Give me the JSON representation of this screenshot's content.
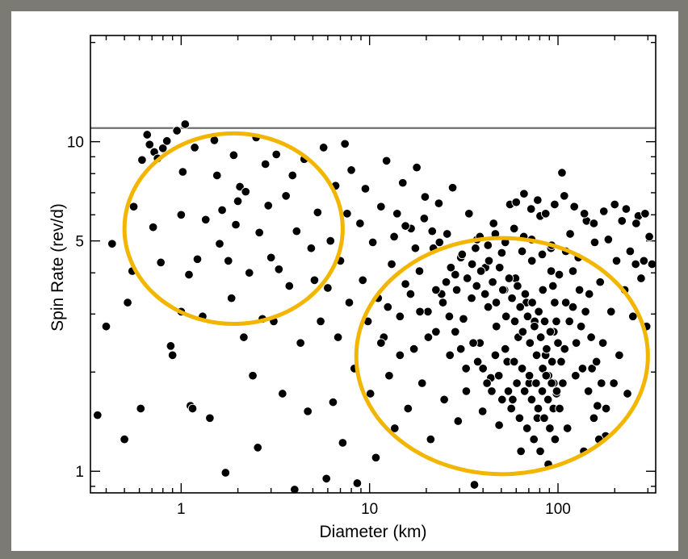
{
  "chart_data": {
    "type": "scatter",
    "title": "",
    "xlabel": "Diameter (km)",
    "ylabel": "Spin Rate (rev/d)",
    "xscale": "log",
    "yscale": "log",
    "xlim": [
      0.33,
      330
    ],
    "ylim": [
      0.86,
      21
    ],
    "grid": false,
    "x_ticks": [
      {
        "value": 1,
        "label": "1"
      },
      {
        "value": 10,
        "label": "10"
      },
      {
        "value": 100,
        "label": "100"
      }
    ],
    "y_ticks": [
      {
        "value": 1,
        "label": "1"
      },
      {
        "value": 5,
        "label": "5"
      },
      {
        "value": 10,
        "label": "10"
      }
    ],
    "spin_barrier": 11,
    "marker_color": "#000000",
    "highlight_color": "#f2b600",
    "highlight_regions": [
      {
        "x_range": [
          0.5,
          7.2
        ],
        "y_range": [
          2.8,
          10.6
        ]
      },
      {
        "x_range": [
          8.5,
          300
        ],
        "y_range": [
          0.98,
          5.1
        ]
      }
    ],
    "points": [
      [
        0.36,
        1.48
      ],
      [
        0.43,
        4.9
      ],
      [
        0.4,
        2.75
      ],
      [
        0.5,
        1.25
      ],
      [
        0.52,
        3.25
      ],
      [
        0.55,
        4.05
      ],
      [
        0.56,
        6.35
      ],
      [
        0.61,
        1.55
      ],
      [
        0.62,
        8.8
      ],
      [
        0.66,
        10.5
      ],
      [
        0.68,
        9.8
      ],
      [
        0.71,
        5.5
      ],
      [
        0.72,
        9.3
      ],
      [
        0.75,
        8.9
      ],
      [
        0.78,
        4.3
      ],
      [
        0.8,
        9.55
      ],
      [
        0.84,
        10.05
      ],
      [
        0.88,
        2.4
      ],
      [
        0.9,
        2.25
      ],
      [
        0.95,
        10.8
      ],
      [
        1.0,
        3.05
      ],
      [
        1.0,
        6.0
      ],
      [
        1.02,
        8.1
      ],
      [
        1.05,
        11.3
      ],
      [
        1.1,
        3.95
      ],
      [
        1.12,
        1.58
      ],
      [
        1.15,
        1.55
      ],
      [
        1.18,
        9.6
      ],
      [
        1.22,
        4.4
      ],
      [
        1.3,
        2.95
      ],
      [
        1.35,
        5.8
      ],
      [
        1.42,
        1.45
      ],
      [
        1.5,
        10.1
      ],
      [
        1.55,
        7.9
      ],
      [
        1.6,
        4.9
      ],
      [
        1.65,
        6.2
      ],
      [
        1.72,
        0.99
      ],
      [
        1.78,
        4.35
      ],
      [
        1.85,
        3.35
      ],
      [
        1.9,
        9.1
      ],
      [
        1.95,
        5.6
      ],
      [
        2.0,
        6.6
      ],
      [
        2.05,
        7.3
      ],
      [
        2.15,
        2.55
      ],
      [
        2.2,
        7.05
      ],
      [
        2.3,
        4.0
      ],
      [
        2.4,
        1.95
      ],
      [
        2.5,
        10.3
      ],
      [
        2.55,
        1.18
      ],
      [
        2.6,
        5.3
      ],
      [
        2.7,
        2.9
      ],
      [
        2.8,
        8.55
      ],
      [
        2.9,
        6.4
      ],
      [
        3.0,
        4.45
      ],
      [
        3.1,
        2.85
      ],
      [
        3.2,
        9.15
      ],
      [
        3.3,
        4.1
      ],
      [
        3.45,
        1.72
      ],
      [
        3.6,
        6.85
      ],
      [
        3.75,
        3.65
      ],
      [
        3.9,
        7.9
      ],
      [
        4.0,
        0.88
      ],
      [
        4.1,
        5.35
      ],
      [
        4.3,
        2.45
      ],
      [
        4.5,
        8.85
      ],
      [
        4.7,
        1.52
      ],
      [
        4.9,
        4.75
      ],
      [
        5.1,
        3.8
      ],
      [
        5.3,
        6.1
      ],
      [
        5.5,
        2.85
      ],
      [
        5.7,
        9.6
      ],
      [
        5.9,
        0.95
      ],
      [
        6.0,
        3.6
      ],
      [
        6.2,
        5.0
      ],
      [
        6.4,
        1.62
      ],
      [
        6.6,
        7.35
      ],
      [
        6.8,
        2.55
      ],
      [
        7.0,
        4.35
      ],
      [
        7.2,
        1.22
      ],
      [
        7.4,
        9.85
      ],
      [
        7.6,
        6.05
      ],
      [
        7.8,
        3.25
      ],
      [
        8.0,
        8.2
      ],
      [
        8.3,
        2.05
      ],
      [
        8.6,
        0.92
      ],
      [
        8.9,
        5.65
      ],
      [
        9.2,
        3.8
      ],
      [
        9.5,
        7.2
      ],
      [
        9.8,
        2.85
      ],
      [
        10.1,
        1.72
      ],
      [
        10.4,
        4.95
      ],
      [
        10.8,
        1.1
      ],
      [
        11.1,
        3.35
      ],
      [
        11.5,
        6.35
      ],
      [
        11.9,
        2.55
      ],
      [
        12.3,
        8.75
      ],
      [
        12.7,
        1.95
      ],
      [
        13.1,
        4.25
      ],
      [
        13.6,
        1.35
      ],
      [
        14.0,
        6.05
      ],
      [
        14.5,
        2.95
      ],
      [
        15.0,
        7.5
      ],
      [
        15.5,
        3.7
      ],
      [
        16.0,
        1.55
      ],
      [
        16.6,
        5.45
      ],
      [
        17.2,
        2.35
      ],
      [
        17.8,
        8.35
      ],
      [
        18.4,
        4.05
      ],
      [
        19.0,
        1.85
      ],
      [
        19.7,
        6.8
      ],
      [
        20.4,
        3.05
      ],
      [
        21.1,
        1.25
      ],
      [
        21.8,
        4.75
      ],
      [
        22.5,
        2.65
      ],
      [
        23.3,
        6.5
      ],
      [
        24.1,
        3.45
      ],
      [
        24.9,
        1.65
      ],
      [
        25.8,
        5.25
      ],
      [
        26.7,
        2.25
      ],
      [
        27.6,
        7.25
      ],
      [
        28.5,
        3.95
      ],
      [
        29.5,
        1.42
      ],
      [
        30.5,
        4.45
      ],
      [
        31.5,
        2.9
      ],
      [
        32.6,
        1.75
      ],
      [
        33.7,
        6.05
      ],
      [
        34.8,
        3.35
      ],
      [
        36.0,
        0.91
      ],
      [
        37.2,
        5.05
      ],
      [
        38.5,
        2.45
      ],
      [
        39.8,
        1.52
      ],
      [
        41.2,
        4.15
      ],
      [
        42.6,
        3.15
      ],
      [
        44.0,
        1.92
      ],
      [
        45.5,
        5.65
      ],
      [
        47.1,
        2.75
      ],
      [
        48.7,
        1.38
      ],
      [
        50.3,
        4.6
      ],
      [
        52.0,
        3.55
      ],
      [
        53.8,
        2.15
      ],
      [
        55.6,
        6.45
      ],
      [
        57.5,
        1.65
      ],
      [
        59.5,
        3.85
      ],
      [
        61.5,
        2.55
      ],
      [
        63.6,
        1.15
      ],
      [
        65.8,
        5.15
      ],
      [
        68.0,
        3.25
      ],
      [
        70.3,
        1.85
      ],
      [
        72.7,
        4.35
      ],
      [
        75.2,
        2.85
      ],
      [
        77.7,
        1.45
      ],
      [
        80.4,
        5.95
      ],
      [
        83.1,
        3.55
      ],
      [
        85.9,
        2.25
      ],
      [
        88.8,
        1.05
      ],
      [
        91.8,
        4.75
      ],
      [
        95.0,
        2.65
      ],
      [
        98.2,
        1.72
      ],
      [
        101.5,
        3.95
      ],
      [
        105.0,
        8.05
      ],
      [
        108.5,
        2.35
      ],
      [
        112.2,
        1.35
      ],
      [
        116.0,
        5.25
      ],
      [
        120.0,
        3.15
      ],
      [
        124.0,
        1.95
      ],
      [
        128.2,
        4.45
      ],
      [
        132.6,
        2.75
      ],
      [
        137.1,
        1.15
      ],
      [
        141.7,
        5.75
      ],
      [
        146.5,
        3.45
      ],
      [
        151.5,
        2.05
      ],
      [
        156.6,
        4.95
      ],
      [
        161.9,
        1.58
      ],
      [
        167.4,
        3.75
      ],
      [
        173.1,
        2.45
      ],
      [
        179.0,
        1.28
      ],
      [
        185.0,
        5.05
      ],
      [
        191.3,
        3.05
      ],
      [
        197.8,
        1.85
      ],
      [
        204.5,
        4.35
      ],
      [
        211.4,
        2.25
      ],
      [
        218.6,
        5.75
      ],
      [
        226.0,
        3.55
      ],
      [
        233.7,
        1.72
      ],
      [
        241.6,
        4.65
      ],
      [
        249.8,
        2.95
      ],
      [
        258.3,
        4.25
      ],
      [
        267.0,
        5.95
      ],
      [
        276.1,
        3.85
      ],
      [
        285.5,
        4.35
      ],
      [
        295.2,
        2.75
      ],
      [
        305.2,
        5.15
      ],
      [
        315.5,
        4.25
      ],
      [
        25.5,
        3.75
      ],
      [
        27.0,
        4.15
      ],
      [
        29.0,
        3.55
      ],
      [
        31.0,
        4.55
      ],
      [
        33.0,
        3.85
      ],
      [
        35.0,
        4.25
      ],
      [
        37.0,
        3.65
      ],
      [
        39.0,
        4.05
      ],
      [
        41.0,
        3.45
      ],
      [
        43.0,
        4.35
      ],
      [
        45.0,
        3.75
      ],
      [
        47.0,
        3.25
      ],
      [
        49.0,
        4.15
      ],
      [
        51.0,
        3.55
      ],
      [
        53.0,
        2.95
      ],
      [
        55.0,
        3.85
      ],
      [
        57.0,
        3.35
      ],
      [
        59.0,
        2.85
      ],
      [
        61.0,
        3.65
      ],
      [
        63.0,
        3.15
      ],
      [
        65.0,
        2.65
      ],
      [
        67.0,
        3.45
      ],
      [
        69.0,
        2.95
      ],
      [
        71.0,
        2.45
      ],
      [
        73.0,
        3.25
      ],
      [
        75.0,
        2.75
      ],
      [
        77.0,
        2.25
      ],
      [
        79.0,
        3.05
      ],
      [
        81.0,
        2.55
      ],
      [
        83.0,
        2.05
      ],
      [
        85.0,
        2.85
      ],
      [
        87.0,
        2.35
      ],
      [
        89.0,
        1.95
      ],
      [
        91.0,
        2.65
      ],
      [
        93.0,
        2.15
      ],
      [
        95.0,
        1.85
      ],
      [
        40.0,
        2.05
      ],
      [
        42.0,
        1.85
      ],
      [
        44.5,
        1.75
      ],
      [
        46.5,
        2.25
      ],
      [
        48.5,
        1.95
      ],
      [
        50.5,
        1.65
      ],
      [
        52.5,
        2.35
      ],
      [
        54.5,
        1.75
      ],
      [
        56.5,
        1.55
      ],
      [
        58.5,
        2.15
      ],
      [
        60.5,
        1.85
      ],
      [
        62.5,
        1.45
      ],
      [
        64.5,
        2.05
      ],
      [
        66.5,
        1.75
      ],
      [
        68.5,
        1.35
      ],
      [
        70.5,
        1.95
      ],
      [
        72.5,
        1.65
      ],
      [
        74.5,
        1.25
      ],
      [
        76.5,
        1.85
      ],
      [
        78.5,
        1.55
      ],
      [
        80.5,
        1.15
      ],
      [
        82.5,
        1.75
      ],
      [
        84.5,
        1.45
      ],
      [
        86.5,
        1.95
      ],
      [
        88.5,
        1.65
      ],
      [
        90.5,
        1.35
      ],
      [
        92.5,
        1.85
      ],
      [
        94.5,
        1.55
      ],
      [
        96.5,
        1.25
      ],
      [
        98.5,
        1.75
      ],
      [
        35.5,
        2.45
      ],
      [
        37.5,
        2.15
      ],
      [
        30.5,
        2.35
      ],
      [
        32.5,
        2.05
      ],
      [
        28.5,
        2.65
      ],
      [
        26.5,
        2.95
      ],
      [
        24.5,
        3.25
      ],
      [
        22.5,
        3.55
      ],
      [
        20.5,
        2.55
      ],
      [
        18.5,
        3.05
      ],
      [
        16.5,
        3.45
      ],
      [
        14.5,
        2.25
      ],
      [
        12.5,
        3.15
      ],
      [
        11.5,
        2.45
      ],
      [
        13.5,
        5.15
      ],
      [
        15.5,
        5.55
      ],
      [
        17.5,
        4.75
      ],
      [
        19.5,
        5.85
      ],
      [
        21.5,
        5.35
      ],
      [
        23.5,
        4.95
      ],
      [
        36.5,
        4.75
      ],
      [
        38.5,
        5.15
      ],
      [
        42.5,
        4.85
      ],
      [
        46.5,
        5.25
      ],
      [
        52.5,
        4.95
      ],
      [
        58.5,
        5.45
      ],
      [
        64.5,
        4.65
      ],
      [
        72.5,
        5.05
      ],
      [
        82.5,
        4.55
      ],
      [
        92.5,
        4.85
      ],
      [
        110.0,
        4.65
      ],
      [
        120.0,
        4.05
      ],
      [
        130.0,
        3.55
      ],
      [
        140.0,
        3.05
      ],
      [
        150.0,
        2.55
      ],
      [
        160.0,
        2.15
      ],
      [
        170.0,
        1.85
      ],
      [
        180.0,
        1.55
      ],
      [
        110.0,
        3.25
      ],
      [
        115.0,
        2.85
      ],
      [
        125.0,
        2.45
      ],
      [
        135.0,
        2.05
      ],
      [
        145.0,
        1.75
      ],
      [
        155.0,
        1.45
      ],
      [
        165.0,
        1.25
      ],
      [
        102.0,
        1.55
      ],
      [
        106.0,
        1.85
      ],
      [
        104.0,
        2.15
      ],
      [
        100.0,
        2.45
      ],
      [
        98.0,
        2.85
      ],
      [
        96.0,
        3.25
      ],
      [
        94.0,
        3.65
      ],
      [
        92.0,
        4.05
      ],
      [
        60.0,
        6.55
      ],
      [
        66.0,
        6.95
      ],
      [
        72.0,
        6.25
      ],
      [
        78.0,
        6.65
      ],
      [
        86.0,
        6.05
      ],
      [
        96.0,
        6.45
      ],
      [
        108.0,
        6.85
      ],
      [
        122.0,
        6.35
      ],
      [
        138.0,
        6.05
      ],
      [
        155.0,
        5.65
      ],
      [
        175.0,
        6.15
      ],
      [
        200.0,
        6.45
      ],
      [
        230.0,
        6.25
      ],
      [
        260.0,
        5.65
      ],
      [
        290.0,
        6.05
      ]
    ]
  }
}
